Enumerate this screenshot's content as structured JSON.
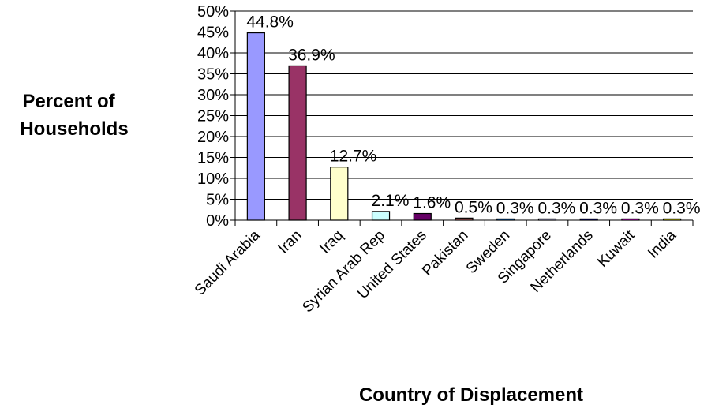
{
  "chart_data": {
    "type": "bar",
    "title": "",
    "ylabel_lines": [
      "Percent of",
      "Households"
    ],
    "xlabel": "Country of Displacement",
    "categories": [
      "Saudi Arabia",
      "Iran",
      "Iraq",
      "Syrian Arab Rep",
      "United States",
      "Pakistan",
      "Sweden",
      "Singapore",
      "Netherlands",
      "Kuwait",
      "India"
    ],
    "values": [
      44.8,
      36.9,
      12.7,
      2.1,
      1.6,
      0.5,
      0.3,
      0.3,
      0.3,
      0.3,
      0.3
    ],
    "data_labels": [
      "44.8%",
      "36.9%",
      "12.7%",
      "2.1%",
      "1.6%",
      "0.5%",
      "0.3%",
      "0.3%",
      "0.3%",
      "0.3%",
      "0.3%"
    ],
    "ylim": [
      0,
      50
    ],
    "yticks": [
      0,
      5,
      10,
      15,
      20,
      25,
      30,
      35,
      40,
      45,
      50
    ],
    "ytick_labels": [
      "0%",
      "5%",
      "10%",
      "15%",
      "20%",
      "25%",
      "30%",
      "35%",
      "40%",
      "45%",
      "50%"
    ],
    "grid": true,
    "legend": "none",
    "bar_colors": [
      "#9999ff",
      "#993366",
      "#ffffcc",
      "#ccffff",
      "#660066",
      "#ff8080",
      "#0066cc",
      "#ccccff",
      "#000080",
      "#ff00ff",
      "#ffff00"
    ]
  }
}
